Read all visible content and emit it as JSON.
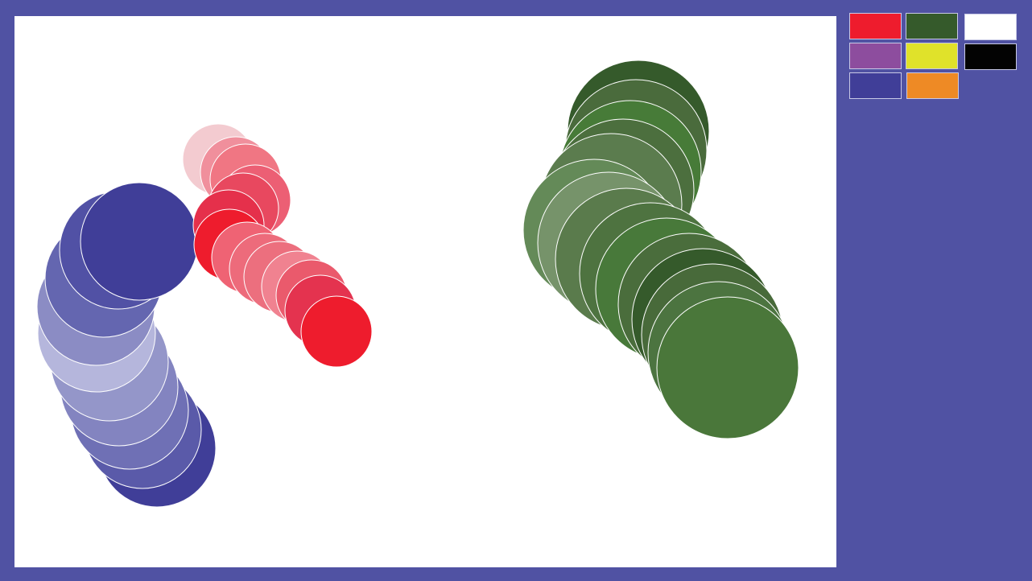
{
  "app": {
    "background_color": "#5052a3",
    "canvas_color": "#ffffff"
  },
  "palette": {
    "swatches": [
      {
        "name": "red",
        "color": "#ee1c2d"
      },
      {
        "name": "dark-green",
        "color": "#355a2b"
      },
      {
        "name": "white",
        "color": "#ffffff"
      },
      {
        "name": "purple",
        "color": "#8d4d9e"
      },
      {
        "name": "yellow",
        "color": "#e0e22a"
      },
      {
        "name": "black",
        "color": "#030303"
      },
      {
        "name": "indigo",
        "color": "#403e98"
      },
      {
        "name": "orange",
        "color": "#ee8a25"
      }
    ]
  },
  "strokes": [
    {
      "name": "blue-stroke",
      "circles": [
        {
          "color": "#403e98"
        },
        {
          "color": "#5a5aa9"
        },
        {
          "color": "#6f70b5"
        },
        {
          "color": "#8384c0"
        },
        {
          "color": "#9496c9"
        },
        {
          "color": "#b5b6dc"
        },
        {
          "color": "#8b8cc4"
        },
        {
          "color": "#6466b0"
        },
        {
          "color": "#5151a5"
        },
        {
          "color": "#403e98"
        }
      ]
    },
    {
      "name": "red-stroke",
      "circles": [
        {
          "color": "#f3cbd0"
        },
        {
          "color": "#f08f9c"
        },
        {
          "color": "#f07683"
        },
        {
          "color": "#ec5f74"
        },
        {
          "color": "#e8485f"
        },
        {
          "color": "#e5304b"
        },
        {
          "color": "#ee1c2d"
        },
        {
          "color": "#ef6374"
        },
        {
          "color": "#ed6b7b"
        },
        {
          "color": "#ec6f7e"
        },
        {
          "color": "#f08290"
        },
        {
          "color": "#ea5a6c"
        },
        {
          "color": "#e4334f"
        },
        {
          "color": "#ee1c2d"
        }
      ]
    },
    {
      "name": "green-stroke",
      "circles": [
        {
          "color": "#355a2b"
        },
        {
          "color": "#4a6b3c"
        },
        {
          "color": "#477b38"
        },
        {
          "color": "#4c6f3e"
        },
        {
          "color": "#5b7c4e"
        },
        {
          "color": "#648a58"
        },
        {
          "color": "#76936a"
        },
        {
          "color": "#5a7b4c"
        },
        {
          "color": "#4e7340"
        },
        {
          "color": "#48793a"
        },
        {
          "color": "#4a6d3c"
        },
        {
          "color": "#355a2b"
        },
        {
          "color": "#486a3a"
        },
        {
          "color": "#4c7440"
        },
        {
          "color": "#4a773a"
        }
      ]
    }
  ]
}
